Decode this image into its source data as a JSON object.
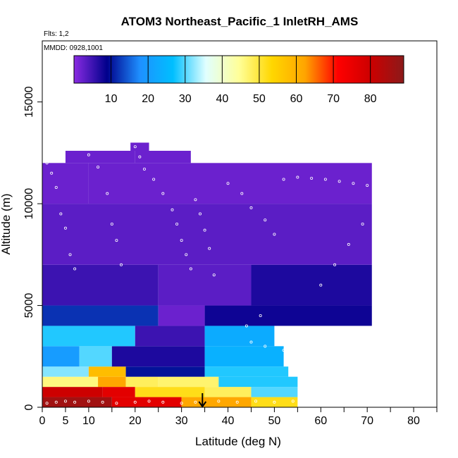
{
  "chart_data": {
    "type": "heatmap",
    "title": "ATOM3 Northeast_Pacific_1 InletRH_AMS",
    "annotations": [
      "Flts: 1,2",
      "MMDD: 0928,1001"
    ],
    "xlabel": "Latitude (deg N)",
    "ylabel": "Altitude (m)",
    "xlim": [
      0,
      85
    ],
    "ylim": [
      0,
      18000
    ],
    "x_ticks": [
      0,
      5,
      10,
      20,
      30,
      40,
      50,
      60,
      70,
      80
    ],
    "y_ticks": [
      0,
      5000,
      10000,
      15000
    ],
    "colorbar": {
      "range": [
        0,
        89
      ],
      "ticks": [
        10,
        20,
        30,
        40,
        50,
        60,
        70,
        80
      ],
      "colors": [
        "#8A2BE2",
        "#00008B",
        "#1E90FF",
        "#00BFFF",
        "#E0FFFF",
        "#FFFF99",
        "#FFD700",
        "#FFA500",
        "#FF0000",
        "#CC0000",
        "#8B1A1A"
      ]
    },
    "marker": {
      "x": 34.5,
      "direction": "down"
    },
    "altitude_layers": [
      {
        "z0": 0,
        "z1": 500,
        "segments": [
          [
            0,
            15,
            86
          ],
          [
            15,
            30,
            76
          ],
          [
            30,
            45,
            62
          ],
          [
            45,
            55,
            52
          ]
        ]
      },
      {
        "z0": 500,
        "z1": 1000,
        "segments": [
          [
            0,
            13,
            80
          ],
          [
            13,
            20,
            76
          ],
          [
            20,
            35,
            52
          ],
          [
            35,
            45,
            48
          ],
          [
            45,
            55,
            30
          ]
        ]
      },
      {
        "z0": 1000,
        "z1": 1500,
        "segments": [
          [
            0,
            12,
            46
          ],
          [
            12,
            18,
            62
          ],
          [
            18,
            25,
            48
          ],
          [
            25,
            38,
            47
          ],
          [
            38,
            55,
            28
          ]
        ]
      },
      {
        "z0": 1500,
        "z1": 2000,
        "segments": [
          [
            0,
            10,
            32
          ],
          [
            10,
            18,
            58
          ],
          [
            18,
            35,
            10
          ],
          [
            35,
            53,
            28
          ]
        ]
      },
      {
        "z0": 2000,
        "z1": 3000,
        "segments": [
          [
            0,
            8,
            20
          ],
          [
            8,
            15,
            30
          ],
          [
            15,
            35,
            7
          ],
          [
            35,
            52,
            24
          ]
        ]
      },
      {
        "z0": 3000,
        "z1": 4000,
        "segments": [
          [
            0,
            20,
            28
          ],
          [
            20,
            35,
            5
          ],
          [
            35,
            50,
            23
          ]
        ]
      },
      {
        "z0": 4000,
        "z1": 5000,
        "segments": [
          [
            0,
            25,
            12
          ],
          [
            25,
            35,
            2
          ],
          [
            35,
            71,
            8
          ]
        ]
      },
      {
        "z0": 5000,
        "z1": 7000,
        "segments": [
          [
            0,
            25,
            5
          ],
          [
            25,
            45,
            3
          ],
          [
            45,
            71,
            7
          ]
        ]
      },
      {
        "z0": 7000,
        "z1": 10000,
        "segments": [
          [
            0,
            71,
            3
          ]
        ]
      },
      {
        "z0": 10000,
        "z1": 12000,
        "segments": [
          [
            0,
            10,
            2
          ],
          [
            10,
            71,
            2
          ]
        ]
      },
      {
        "z0": 12000,
        "z1": 12600,
        "segments": [
          [
            5,
            20,
            2
          ],
          [
            20,
            32,
            2
          ]
        ]
      },
      {
        "z0": 12600,
        "z1": 13000,
        "segments": [
          [
            19,
            23,
            2
          ]
        ]
      }
    ],
    "sample_points": [
      [
        1,
        200
      ],
      [
        3,
        250
      ],
      [
        5,
        300
      ],
      [
        7,
        250
      ],
      [
        10,
        300
      ],
      [
        13,
        250
      ],
      [
        16,
        200
      ],
      [
        20,
        250
      ],
      [
        23,
        300
      ],
      [
        26,
        250
      ],
      [
        30,
        200
      ],
      [
        33,
        250
      ],
      [
        38,
        300
      ],
      [
        42,
        250
      ],
      [
        46,
        300
      ],
      [
        50,
        250
      ],
      [
        54,
        300
      ],
      [
        1,
        12000
      ],
      [
        2,
        11500
      ],
      [
        3,
        10800
      ],
      [
        4,
        9500
      ],
      [
        5,
        8800
      ],
      [
        6,
        7500
      ],
      [
        7,
        6800
      ],
      [
        10,
        12400
      ],
      [
        12,
        11800
      ],
      [
        14,
        10500
      ],
      [
        15,
        9000
      ],
      [
        16,
        8200
      ],
      [
        17,
        7000
      ],
      [
        20,
        12800
      ],
      [
        21,
        12300
      ],
      [
        22,
        11700
      ],
      [
        24,
        11200
      ],
      [
        26,
        10500
      ],
      [
        28,
        9700
      ],
      [
        29,
        9000
      ],
      [
        30,
        8200
      ],
      [
        31,
        7500
      ],
      [
        32,
        6800
      ],
      [
        33,
        10200
      ],
      [
        34,
        9500
      ],
      [
        35,
        8700
      ],
      [
        36,
        7800
      ],
      [
        37,
        6500
      ],
      [
        40,
        11000
      ],
      [
        43,
        10500
      ],
      [
        45,
        9800
      ],
      [
        48,
        9200
      ],
      [
        50,
        8500
      ],
      [
        52,
        11200
      ],
      [
        55,
        11300
      ],
      [
        58,
        11250
      ],
      [
        61,
        11200
      ],
      [
        64,
        11100
      ],
      [
        67,
        11000
      ],
      [
        70,
        10900
      ],
      [
        45,
        3200
      ],
      [
        48,
        3000
      ],
      [
        52,
        2800
      ],
      [
        55,
        3500
      ],
      [
        44,
        4000
      ],
      [
        47,
        4500
      ],
      [
        60,
        6000
      ],
      [
        63,
        7000
      ],
      [
        66,
        8000
      ],
      [
        69,
        9000
      ]
    ]
  }
}
